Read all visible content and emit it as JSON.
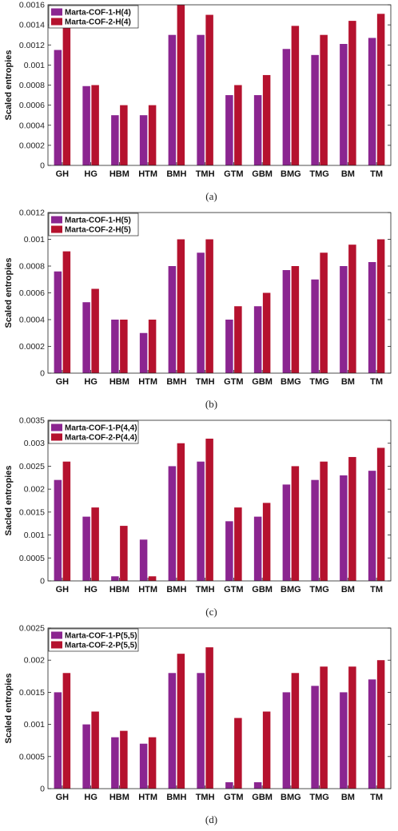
{
  "colors": {
    "series1": "#8b2590",
    "series2": "#b5122e"
  },
  "chart_data": [
    {
      "type": "bar",
      "caption": "(a)",
      "ylabel": "Scaled entropies",
      "ylim": [
        0,
        0.0016
      ],
      "yticks": [
        "0",
        "0.0002",
        "0.0004",
        "0.0006",
        "0.0008",
        "0.001",
        "0.0012",
        "0.0014",
        "0.0016"
      ],
      "legend_position": "top-left",
      "categories": [
        "GH",
        "HG",
        "HBM",
        "HTM",
        "BMH",
        "TMH",
        "GTM",
        "GBM",
        "BMG",
        "TMG",
        "BM",
        "TM"
      ],
      "series": [
        {
          "name": "Marta-COF-1-H(4)",
          "values": [
            0.00115,
            0.00079,
            0.0005,
            0.0005,
            0.0013,
            0.0013,
            0.0007,
            0.0007,
            0.00116,
            0.0011,
            0.00121,
            0.00127
          ]
        },
        {
          "name": "Marta-COF-2-H(4)",
          "values": [
            0.00137,
            0.0008,
            0.0006,
            0.0006,
            0.0016,
            0.0015,
            0.0008,
            0.0009,
            0.00139,
            0.0013,
            0.00144,
            0.00151
          ]
        }
      ]
    },
    {
      "type": "bar",
      "caption": "(b)",
      "ylabel": "Scaled entropies",
      "ylim": [
        0,
        0.0012
      ],
      "yticks": [
        "0",
        "0.0002",
        "0.0004",
        "0.0006",
        "0.0008",
        "0.001",
        "0.0012"
      ],
      "legend_position": "top-left",
      "categories": [
        "GH",
        "HG",
        "HBM",
        "HTM",
        "BMH",
        "TMH",
        "GTM",
        "GBM",
        "BMG",
        "TMG",
        "BM",
        "TM"
      ],
      "series": [
        {
          "name": "Marta-COF-1-H(5)",
          "values": [
            0.00076,
            0.00053,
            0.0004,
            0.0003,
            0.0008,
            0.0009,
            0.0004,
            0.0005,
            0.00077,
            0.0007,
            0.0008,
            0.00083
          ]
        },
        {
          "name": "Marta-COF-2-H(5)",
          "values": [
            0.00091,
            0.00063,
            0.0004,
            0.0004,
            0.001,
            0.001,
            0.0005,
            0.0006,
            0.0008,
            0.0009,
            0.00096,
            0.001
          ]
        }
      ]
    },
    {
      "type": "bar",
      "caption": "(c)",
      "ylabel": "Sacled entropies",
      "ylim": [
        0,
        0.0035
      ],
      "yticks": [
        "0",
        "0.0005",
        "0.001",
        "0.0015",
        "0.002",
        "0.0025",
        "0.003",
        "0.0035"
      ],
      "legend_position": "top-left",
      "categories": [
        "GH",
        "HG",
        "HBM",
        "HTM",
        "BMH",
        "TMH",
        "GTM",
        "GBM",
        "BMG",
        "TMG",
        "BM",
        "TM"
      ],
      "series": [
        {
          "name": "Marta-COF-1-P(4,4)",
          "values": [
            0.0022,
            0.0014,
            0.0001,
            0.0009,
            0.0025,
            0.0026,
            0.0013,
            0.0014,
            0.0021,
            0.0022,
            0.0023,
            0.0024
          ]
        },
        {
          "name": "Marta-COF-2-P(4,4)",
          "values": [
            0.0026,
            0.0016,
            0.0012,
            0.0001,
            0.003,
            0.0031,
            0.0016,
            0.0017,
            0.0025,
            0.0026,
            0.0027,
            0.0029
          ]
        }
      ]
    },
    {
      "type": "bar",
      "caption": "(d)",
      "ylabel": "Scaled entropies",
      "ylim": [
        0,
        0.0025
      ],
      "yticks": [
        "0",
        "0.0005",
        "0.001",
        "0.0015",
        "0.002",
        "0.0025"
      ],
      "legend_position": "top-left",
      "categories": [
        "GH",
        "HG",
        "HBM",
        "HTM",
        "BMH",
        "TMH",
        "GTM",
        "GBM",
        "BMG",
        "TMG",
        "BM",
        "TM"
      ],
      "series": [
        {
          "name": "Marta-COF-1-P(5,5)",
          "values": [
            0.0015,
            0.001,
            0.0008,
            0.0007,
            0.0018,
            0.0018,
            0.0001,
            0.0001,
            0.0015,
            0.0016,
            0.0015,
            0.0017
          ]
        },
        {
          "name": "Marta-COF-2-P(5,5)",
          "values": [
            0.0018,
            0.0012,
            0.0009,
            0.0008,
            0.0021,
            0.0022,
            0.0011,
            0.0012,
            0.0018,
            0.0019,
            0.0019,
            0.002
          ]
        }
      ]
    }
  ]
}
